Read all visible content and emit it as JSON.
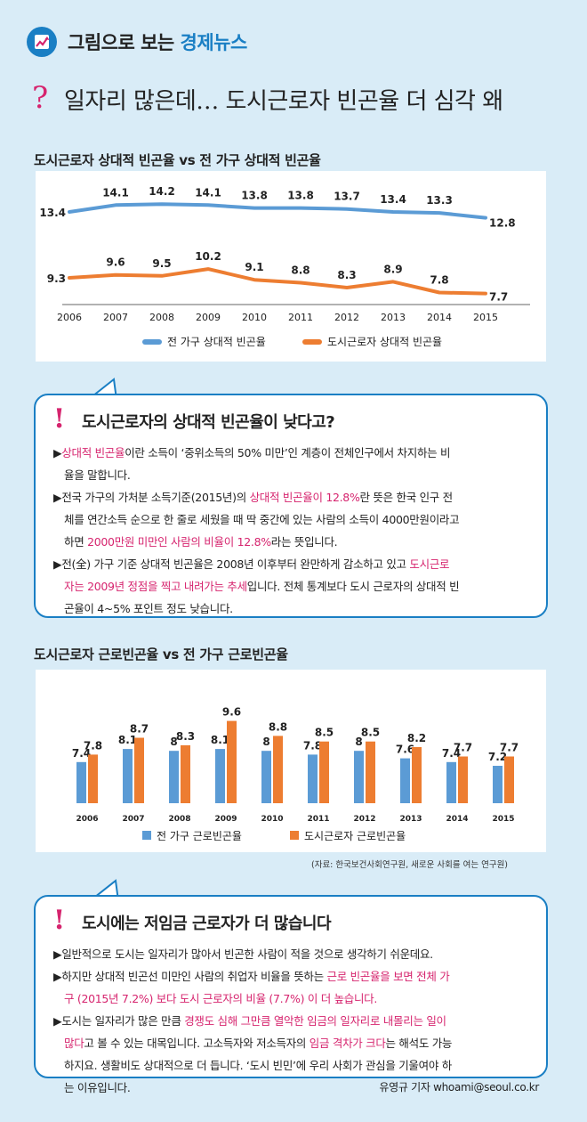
{
  "header": {
    "label_plain": "그림으로 보는 ",
    "label_accent": "경제뉴스"
  },
  "headline": {
    "mark": "?",
    "text": "일자리 많은데… 도시근로자 빈곤율 더 심각 왜"
  },
  "colors": {
    "blue": "#5b9bd5",
    "orange": "#ed7d31",
    "accent": "#d6246e",
    "brand": "#1a7fc4"
  },
  "chart_data": [
    {
      "type": "line",
      "title": "도시근로자 상대적 빈곤율 vs 전 가구 상대적 빈곤율",
      "x": [
        "2006",
        "2007",
        "2008",
        "2009",
        "2010",
        "2011",
        "2012",
        "2013",
        "2014",
        "2015"
      ],
      "series": [
        {
          "name": "전 가구 상대적 빈곤율",
          "values": [
            13.4,
            14.1,
            14.2,
            14.1,
            13.8,
            13.8,
            13.7,
            13.4,
            13.3,
            12.8
          ]
        },
        {
          "name": "도시근로자 상대적 빈곤율",
          "values": [
            9.3,
            9.6,
            9.5,
            10.2,
            9.1,
            8.8,
            8.3,
            8.9,
            7.8,
            7.7
          ]
        }
      ],
      "legend": "bottom"
    },
    {
      "type": "bar",
      "title": "도시근로자 근로빈곤율 vs 전 가구 근로빈곤율",
      "categories": [
        "2006",
        "2007",
        "2008",
        "2009",
        "2010",
        "2011",
        "2012",
        "2013",
        "2014",
        "2015"
      ],
      "series": [
        {
          "name": "전 가구 근로빈곤율",
          "values": [
            7.4,
            8.1,
            8,
            8.1,
            8,
            7.8,
            8,
            7.6,
            7.4,
            7.2
          ]
        },
        {
          "name": "도시근로자 근로빈곤율",
          "values": [
            7.8,
            8.7,
            8.3,
            9.6,
            8.8,
            8.5,
            8.5,
            8.2,
            7.7,
            7.7
          ]
        }
      ],
      "legend": "bottom",
      "source": "(자료: 한국보건사회연구원, 새로운 사회를 여는 연구원)"
    }
  ],
  "box1": {
    "mark": "!",
    "title": "도시근로자의 상대적 빈곤율이 낮다고?",
    "p1": {
      "bullet": "▶",
      "hl": "상대적 빈곤율",
      "rest1": "이란 소득이 ‘중위소득의 50% 미만’인 계층이 전체인구에서 차지하는 비",
      "rest2": "율을 말합니다."
    },
    "p2": {
      "l1a": "▶전국 가구의 가처분 소득기준(2015년)의 ",
      "l1b": "상대적 빈곤율이 12.8%",
      "l1c": "란 뜻은 한국 인구 전",
      "l2": "체를 연간소득 순으로 한 줄로 세웠을 때 딱 중간에 있는 사람의 소득이 4000만원이라고",
      "l3a": "하면 ",
      "l3b": "2000만원 미만인 사람의 비율이 12.8%",
      "l3c": "라는 뜻입니다."
    },
    "p3": {
      "l1a": "▶전(全) 가구 기준 상대적 빈곤율은 2008년 이후부터 완만하게 감소하고 있고 ",
      "l1b": "도시근로",
      "l2a": "자는 2009년 정점을 찍고 내려가는 추세",
      "l2b": "입니다. 전체 통계보다 도시 근로자의 상대적 빈",
      "l3": "곤율이 4~5% 포인트 정도 낮습니다."
    }
  },
  "box2": {
    "mark": "!",
    "title": "도시에는 저임금 근로자가 더 많습니다",
    "p1": "▶일반적으로 도시는 일자리가 많아서 빈곤한 사람이 적을 것으로 생각하기 쉬운데요.",
    "p2": {
      "l1a": "▶하지만 상대적 빈곤선 미만인 사람의 취업자 비율을 뜻하는 ",
      "l1b": "근로 빈곤율을 보면 전체 가",
      "l2": "구 (2015년 7.2%) 보다 도시 근로자의 비율 (7.7%) 이 더 높습니다."
    },
    "p3": {
      "l1a": "▶도시는 일자리가 많은 만큼 ",
      "l1b": "경쟁도 심해 그만큼 열악한 임금의 일자리로 내몰리는 일이",
      "l2a": "많다",
      "l2b": "고 볼 수 있는 대목입니다. 고소득자와 저소득자의 ",
      "l2c": "임금 격차가 크다",
      "l2d": "는 해석도 가능",
      "l3": "하지요. 생활비도 상대적으로 더 듭니다. ‘도시 빈민’에 우리 사회가 관심을 기울여야 하",
      "l4": "는 이유입니다."
    },
    "byline": "유영규 기자 whoami@seoul.co.kr"
  }
}
